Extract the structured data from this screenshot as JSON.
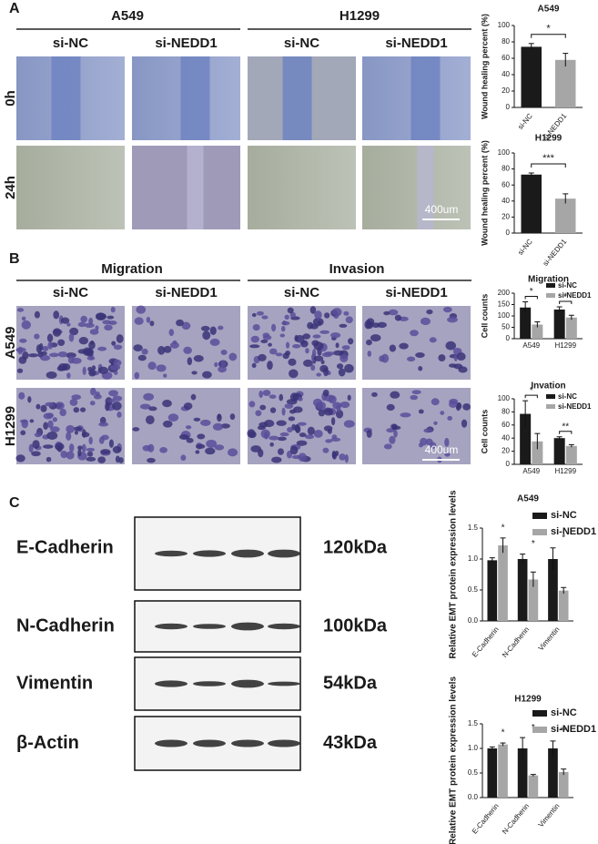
{
  "panel_a": {
    "label": "A",
    "groups": [
      "A549",
      "H1299"
    ],
    "columns": [
      "si-NC",
      "si-NEDD1",
      "si-NC",
      "si-NEDD1"
    ],
    "rows": [
      "0h",
      "24h"
    ],
    "scale_bar": "400um"
  },
  "panel_b": {
    "label": "B",
    "groups": [
      "Migration",
      "Invasion"
    ],
    "columns": [
      "si-NC",
      "si-NEDD1",
      "si-NC",
      "si-NEDD1"
    ],
    "rows": [
      "A549",
      "H1299"
    ],
    "scale_bar": "400um"
  },
  "panel_c": {
    "label": "C",
    "proteins": [
      "E-Cadherin",
      "N-Cadherin",
      "Vimentin",
      "β-Actin"
    ],
    "sizes": [
      "120kDa",
      "100kDa",
      "54kDa",
      "43kDa"
    ]
  },
  "chart_data": [
    {
      "type": "bar",
      "title": "A549",
      "y_label": "Wound healing percent (%)",
      "categories": [
        "si-NC",
        "si-NEDD1"
      ],
      "values": [
        74,
        58
      ],
      "errors": [
        4,
        8
      ],
      "colors": [
        "#1a1a1a",
        "#a6a6a6"
      ],
      "significance": "*",
      "ylim": [
        0,
        100
      ],
      "yticks": [
        0,
        20,
        40,
        60,
        80,
        100
      ]
    },
    {
      "type": "bar",
      "title": "H1299",
      "y_label": "Wound healing percent (%)",
      "categories": [
        "si-NC",
        "si-NEDD1"
      ],
      "values": [
        73,
        43
      ],
      "errors": [
        2,
        6
      ],
      "colors": [
        "#1a1a1a",
        "#a6a6a6"
      ],
      "significance": "***",
      "ylim": [
        0,
        100
      ],
      "yticks": [
        0,
        20,
        40,
        60,
        80,
        100
      ]
    },
    {
      "type": "grouped_bar",
      "title": "Migration",
      "y_label": "Cell counts",
      "categories": [
        "A549",
        "H1299"
      ],
      "series": [
        {
          "name": "si-NC",
          "color": "#1a1a1a",
          "values": [
            137,
            128
          ],
          "errors": [
            25,
            12
          ]
        },
        {
          "name": "si-NEDD1",
          "color": "#a6a6a6",
          "values": [
            62,
            93
          ],
          "errors": [
            12,
            10
          ]
        }
      ],
      "significance": [
        "*",
        "*"
      ],
      "ylim": [
        0,
        200
      ],
      "yticks": [
        0,
        50,
        100,
        150,
        200
      ]
    },
    {
      "type": "grouped_bar",
      "title": "Invation",
      "y_label": "Cell counts",
      "categories": [
        "A549",
        "H1299"
      ],
      "series": [
        {
          "name": "si-NC",
          "color": "#1a1a1a",
          "values": [
            77,
            40
          ],
          "errors": [
            20,
            2
          ]
        },
        {
          "name": "si-NEDD1",
          "color": "#a6a6a6",
          "values": [
            35,
            28
          ],
          "errors": [
            12,
            2
          ]
        }
      ],
      "significance": [
        "*",
        "**"
      ],
      "ylim": [
        0,
        100
      ],
      "yticks": [
        0,
        20,
        40,
        60,
        80,
        100
      ]
    },
    {
      "type": "grouped_bar",
      "title": "A549",
      "y_label": "Relative EMT protein expression levels",
      "categories": [
        "E-Cadherin",
        "N-Cadherin",
        "Vimentin"
      ],
      "series": [
        {
          "name": "si-NC",
          "color": "#1a1a1a",
          "values": [
            0.98,
            1.0,
            1.0
          ],
          "errors": [
            0.04,
            0.08,
            0.18
          ]
        },
        {
          "name": "si-NEDD1",
          "color": "#a6a6a6",
          "values": [
            1.22,
            0.67,
            0.49
          ],
          "errors": [
            0.12,
            0.12,
            0.05
          ]
        }
      ],
      "significance": [
        "*",
        "*",
        "*"
      ],
      "ylim": [
        0,
        1.5
      ],
      "yticks": [
        {
          "value": 0,
          "label": "0.0"
        },
        0.5,
        {
          "value": 1,
          "label": "1.0"
        },
        1.5
      ]
    },
    {
      "type": "grouped_bar",
      "title": "H1299",
      "y_label": "Relative EMT protein expression levels",
      "categories": [
        "E-Cadherin",
        "N-Cadherin",
        "Vimentin"
      ],
      "series": [
        {
          "name": "si-NC",
          "color": "#1a1a1a",
          "values": [
            1.0,
            1.0,
            1.0
          ],
          "errors": [
            0.03,
            0.22,
            0.15
          ]
        },
        {
          "name": "si-NEDD1",
          "color": "#a6a6a6",
          "values": [
            1.08,
            0.45,
            0.52
          ],
          "errors": [
            0.03,
            0.02,
            0.06
          ]
        }
      ],
      "significance": [
        "*",
        "*",
        "**"
      ],
      "ylim": [
        0,
        1.5
      ],
      "yticks": [
        {
          "value": 0,
          "label": "0.0"
        },
        0.5,
        {
          "value": 1,
          "label": "1.0"
        },
        1.5
      ]
    }
  ]
}
